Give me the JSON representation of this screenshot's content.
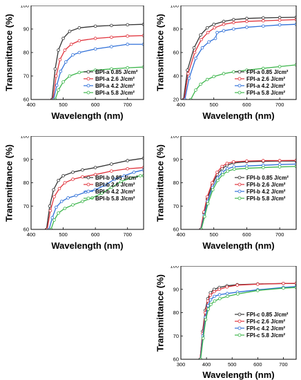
{
  "chart_data": [
    {
      "id": "BPI-a",
      "type": "line",
      "xlabel": "Wavelength (nm)",
      "ylabel": "Transmittance (%)",
      "xlim": [
        400,
        750
      ],
      "ylim": [
        60,
        100
      ],
      "xticks": [
        400,
        500,
        600,
        700
      ],
      "yticks": [
        60,
        70,
        80,
        90,
        100
      ],
      "legend_position": "bottom-right",
      "series": [
        {
          "name": "BPI-a 0.85 J/cm²",
          "color": "#333333",
          "x": [
            465,
            475,
            485,
            500,
            520,
            550,
            600,
            650,
            700,
            750
          ],
          "y": [
            60,
            73,
            81,
            86,
            89,
            90.5,
            91.2,
            91.5,
            91.8,
            92
          ]
        },
        {
          "name": "BPI-a 2.6 J/cm²",
          "color": "#e0313a",
          "x": [
            468,
            478,
            490,
            505,
            525,
            550,
            600,
            650,
            700,
            750
          ],
          "y": [
            60,
            70,
            77,
            81,
            83.5,
            85,
            86,
            86.5,
            87,
            87.2
          ]
        },
        {
          "name": "BPI-a 4.2 J/cm²",
          "color": "#2e6fd8",
          "x": [
            470,
            480,
            492,
            508,
            530,
            550,
            600,
            650,
            700,
            750
          ],
          "y": [
            60,
            66,
            72,
            76,
            79,
            80,
            81.5,
            82.5,
            83.5,
            83.5
          ]
        },
        {
          "name": "BPI-a 5.8 J/cm²",
          "color": "#3bb54a",
          "x": [
            475,
            485,
            500,
            520,
            550,
            600,
            650,
            700,
            750
          ],
          "y": [
            60,
            64,
            67.5,
            70,
            71.5,
            72.5,
            73,
            73.5,
            73.8
          ]
        }
      ]
    },
    {
      "id": "FPI-a",
      "type": "line",
      "xlabel": "Wavelength (nm)",
      "ylabel": "Transmittance (%)",
      "xlim": [
        400,
        750
      ],
      "ylim": [
        20,
        100
      ],
      "xticks": [
        400,
        500,
        600,
        700
      ],
      "yticks": [
        20,
        40,
        60,
        80,
        100
      ],
      "legend_position": "bottom-right",
      "series": [
        {
          "name": "FPI-a 0.85 J/cm²",
          "color": "#333333",
          "x": [
            408,
            420,
            440,
            460,
            480,
            500,
            530,
            560,
            600,
            650,
            700,
            750
          ],
          "y": [
            20,
            45,
            64,
            75,
            81,
            84,
            86.5,
            88,
            89,
            89.5,
            89.8,
            90
          ]
        },
        {
          "name": "FPI-a 2.6 J/cm²",
          "color": "#e0313a",
          "x": [
            410,
            422,
            442,
            462,
            482,
            502,
            530,
            560,
            600,
            650,
            700,
            750
          ],
          "y": [
            20,
            42,
            60,
            71,
            77,
            81,
            84,
            85.5,
            86.5,
            87,
            87.5,
            88
          ]
        },
        {
          "name": "FPI-a 4.2 J/cm²",
          "color": "#2e6fd8",
          "x": [
            412,
            425,
            445,
            465,
            485,
            505,
            510,
            530,
            560,
            600,
            650,
            700,
            750
          ],
          "y": [
            20,
            38,
            55,
            64,
            69,
            72,
            77,
            78.5,
            80,
            81.5,
            82.5,
            83.5,
            84
          ]
        },
        {
          "name": "FPI-a 5.8 J/cm²",
          "color": "#3bb54a",
          "x": [
            430,
            445,
            460,
            480,
            500,
            530,
            560,
            600,
            650,
            700,
            750
          ],
          "y": [
            20,
            28,
            33,
            37,
            39.5,
            42,
            43.5,
            45,
            46.5,
            48,
            49.5
          ]
        }
      ]
    },
    {
      "id": "BPI-b",
      "type": "line",
      "xlabel": "Wavelength (nm)",
      "ylabel": "Transmittance (%)",
      "xlim": [
        400,
        750
      ],
      "ylim": [
        60,
        100
      ],
      "xticks": [
        400,
        500,
        600,
        700
      ],
      "yticks": [
        60,
        70,
        80,
        90,
        100
      ],
      "legend_position": "bottom-right",
      "series": [
        {
          "name": "BPI-b 0.85 J/cm²",
          "color": "#333333",
          "x": [
            448,
            458,
            470,
            485,
            500,
            530,
            560,
            600,
            650,
            700,
            750
          ],
          "y": [
            60,
            70,
            77,
            81,
            83,
            84.5,
            85.5,
            86.5,
            88,
            89.5,
            90.5
          ]
        },
        {
          "name": "BPI-b 2.6 J/cm²",
          "color": "#e0313a",
          "x": [
            450,
            460,
            472,
            488,
            505,
            530,
            560,
            600,
            650,
            700,
            750
          ],
          "y": [
            60,
            68,
            74,
            77.5,
            80,
            81.5,
            82.5,
            83.5,
            85,
            86,
            86.5
          ]
        },
        {
          "name": "BPI-b 4.2 J/cm²",
          "color": "#2e6fd8",
          "x": [
            456,
            466,
            478,
            495,
            515,
            540,
            570,
            600,
            630,
            660,
            690,
            720,
            750
          ],
          "y": [
            60,
            65,
            69.5,
            72,
            73.5,
            74.5,
            76,
            77,
            79,
            81.5,
            83,
            84.5,
            85.5
          ]
        },
        {
          "name": "BPI-b 5.8 J/cm²",
          "color": "#3bb54a",
          "x": [
            462,
            472,
            485,
            505,
            530,
            560,
            590,
            620,
            650,
            680,
            710,
            740,
            750
          ],
          "y": [
            60,
            64,
            67,
            69,
            70.5,
            72,
            73.5,
            75.5,
            78,
            80.5,
            82,
            83,
            83
          ]
        }
      ]
    },
    {
      "id": "FPI-b",
      "type": "line",
      "xlabel": "Wavelength (nm)",
      "ylabel": "Transmittance (%)",
      "xlim": [
        400,
        750
      ],
      "ylim": [
        60,
        100
      ],
      "xticks": [
        400,
        500,
        600,
        700
      ],
      "yticks": [
        60,
        70,
        80,
        90,
        100
      ],
      "legend_position": "bottom-right",
      "series": [
        {
          "name": "FPI-b 0.85 J/cm²",
          "color": "#333333",
          "x": [
            460,
            470,
            480,
            495,
            510,
            525,
            540,
            560,
            600,
            650,
            700,
            750
          ],
          "y": [
            60,
            67,
            73,
            79,
            83.5,
            86,
            87.5,
            88.5,
            89,
            89.2,
            89.3,
            89.3
          ]
        },
        {
          "name": "FPI-b 2.6 J/cm²",
          "color": "#e0313a",
          "x": [
            460,
            470,
            480,
            495,
            510,
            525,
            540,
            560,
            600,
            650,
            700,
            750
          ],
          "y": [
            60,
            67.5,
            74,
            80,
            84.5,
            87,
            88.3,
            89,
            89.3,
            89.5,
            89.5,
            89.6
          ]
        },
        {
          "name": "FPI-b 4.2 J/cm²",
          "color": "#2e6fd8",
          "x": [
            461,
            471,
            481,
            496,
            511,
            526,
            541,
            561,
            600,
            650,
            700,
            750
          ],
          "y": [
            60,
            66,
            72,
            78,
            82,
            84.5,
            86,
            86.8,
            87.2,
            87.5,
            87.8,
            88
          ]
        },
        {
          "name": "FPI-b 5.8 J/cm²",
          "color": "#3bb54a",
          "x": [
            462,
            472,
            482,
            497,
            512,
            527,
            542,
            562,
            600,
            650,
            700,
            750
          ],
          "y": [
            60,
            65.5,
            71,
            77,
            81,
            83.5,
            85,
            85.8,
            86.2,
            86.5,
            86.8,
            87
          ]
        }
      ]
    },
    {
      "id": "FPI-c",
      "type": "line",
      "xlabel": "Wavelength (nm)",
      "ylabel": "Transmittance (%)",
      "xlim": [
        300,
        750
      ],
      "ylim": [
        60,
        100
      ],
      "xticks": [
        300,
        400,
        500,
        600,
        700
      ],
      "yticks": [
        60,
        70,
        80,
        90,
        100
      ],
      "legend_position": "bottom-right",
      "series": [
        {
          "name": "FPI-c 0.85 J/cm²",
          "color": "#333333",
          "x": [
            375,
            385,
            395,
            405,
            415,
            430,
            450,
            480,
            520,
            600,
            700,
            750
          ],
          "y": [
            60,
            72,
            81,
            86,
            88.5,
            90,
            90.8,
            91.5,
            92,
            92.3,
            92.5,
            92.5
          ]
        },
        {
          "name": "FPI-c 2.6 J/cm²",
          "color": "#e0313a",
          "x": [
            375,
            385,
            395,
            405,
            415,
            430,
            450,
            480,
            520,
            600,
            700,
            750
          ],
          "y": [
            60,
            71,
            80,
            85,
            87.5,
            89,
            90,
            91,
            91.8,
            92.2,
            92.5,
            92.6
          ]
        },
        {
          "name": "FPI-c 4.2 J/cm²",
          "color": "#2e6fd8",
          "x": [
            376,
            386,
            396,
            406,
            416,
            431,
            451,
            481,
            521,
            600,
            700,
            750
          ],
          "y": [
            60,
            70,
            78,
            83,
            85.5,
            87,
            87.7,
            88.2,
            88.8,
            89.8,
            90.8,
            91.2
          ]
        },
        {
          "name": "FPI-c 5.8 J/cm²",
          "color": "#3bb54a",
          "x": [
            377,
            387,
            397,
            407,
            417,
            432,
            452,
            482,
            522,
            600,
            700,
            750
          ],
          "y": [
            60,
            69,
            77,
            81.5,
            83.5,
            85,
            86,
            87,
            88,
            89.5,
            90.5,
            90.8
          ]
        }
      ]
    }
  ]
}
